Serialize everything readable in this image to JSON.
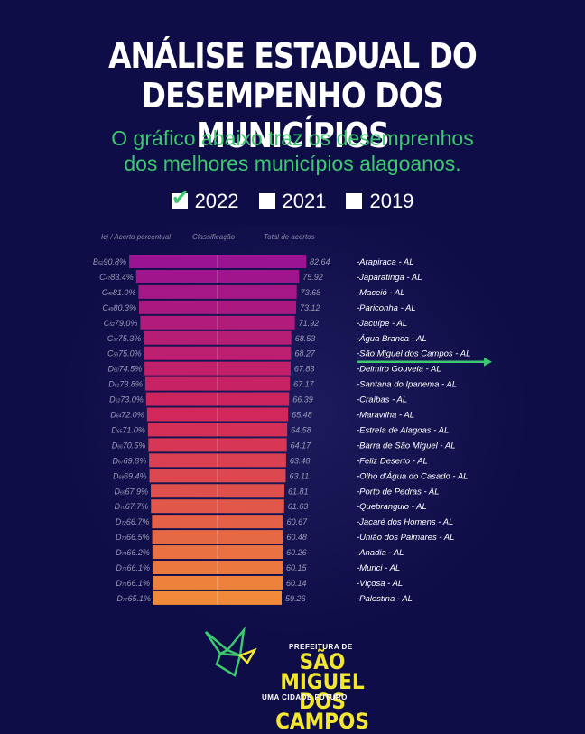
{
  "header": {
    "title_line1": "ANÁLISE ESTADUAL DO",
    "title_line2": "DESEMPENHO DOS MUNICÍPIOS",
    "subtitle_line1": "O gráfico abaixo traz os desemprenhos",
    "subtitle_line2": "dos melhores municípios alagoanos."
  },
  "legend": [
    {
      "label": "2022",
      "checked": true
    },
    {
      "label": "2021",
      "checked": false
    },
    {
      "label": "2019",
      "checked": false
    }
  ],
  "columns": {
    "icj": "Icj / Acerto percentual",
    "class": "Classificação",
    "total": "Total de acertos"
  },
  "chart_data": {
    "type": "bar",
    "title": "ANÁLISE ESTADUAL DO DESEMPENHO DOS MUNICÍPIOS",
    "orientation": "horizontal-centered",
    "highlight": "São Miguel dos Campos - AL",
    "rows": [
      {
        "grade": "B",
        "sub": "62",
        "pct": "90.8%",
        "total": 82.64,
        "name": "Arapiraca - AL"
      },
      {
        "grade": "C",
        "sub": "47",
        "pct": "83.4%",
        "total": 75.92,
        "name": "Japaratinga - AL"
      },
      {
        "grade": "C",
        "sub": "48",
        "pct": "81.0%",
        "total": 73.68,
        "name": "Maceió - AL"
      },
      {
        "grade": "C",
        "sub": "49",
        "pct": "80.3%",
        "total": 73.12,
        "name": "Pariconha - AL"
      },
      {
        "grade": "C",
        "sub": "52",
        "pct": "79.0%",
        "total": 71.92,
        "name": "Jacuípe - AL"
      },
      {
        "grade": "C",
        "sub": "57",
        "pct": "75.3%",
        "total": 68.53,
        "name": "Água Branca - AL"
      },
      {
        "grade": "C",
        "sub": "59",
        "pct": "75.0%",
        "total": 68.27,
        "name": "São Miguel dos Campos - AL"
      },
      {
        "grade": "D",
        "sub": "60",
        "pct": "74.5%",
        "total": 67.83,
        "name": "Delmiro Gouveia - AL"
      },
      {
        "grade": "D",
        "sub": "61",
        "pct": "73.8%",
        "total": 67.17,
        "name": "Santana do Ipanema - AL"
      },
      {
        "grade": "D",
        "sub": "62",
        "pct": "73.0%",
        "total": 66.39,
        "name": "Craíbas - AL"
      },
      {
        "grade": "D",
        "sub": "64",
        "pct": "72.0%",
        "total": 65.48,
        "name": "Maravilha - AL"
      },
      {
        "grade": "D",
        "sub": "65",
        "pct": "71.0%",
        "total": 64.58,
        "name": "Estrela de Alagoas - AL"
      },
      {
        "grade": "D",
        "sub": "66",
        "pct": "70.5%",
        "total": 64.17,
        "name": "Barra de São Miguel - AL"
      },
      {
        "grade": "D",
        "sub": "67",
        "pct": "69.8%",
        "total": 63.48,
        "name": "Feliz Deserto - AL"
      },
      {
        "grade": "D",
        "sub": "68",
        "pct": "69.4%",
        "total": 63.11,
        "name": "Olho d'Água do Casado - AL"
      },
      {
        "grade": "D",
        "sub": "69",
        "pct": "67.9%",
        "total": 61.81,
        "name": "Porto de Pedras - AL"
      },
      {
        "grade": "D",
        "sub": "70",
        "pct": "67.7%",
        "total": 61.63,
        "name": "Quebrangulo - AL"
      },
      {
        "grade": "D",
        "sub": "72",
        "pct": "66.7%",
        "total": 60.67,
        "name": "Jacaré dos Homens - AL"
      },
      {
        "grade": "D",
        "sub": "73",
        "pct": "66.5%",
        "total": 60.48,
        "name": "União dos Palmares - AL"
      },
      {
        "grade": "D",
        "sub": "74",
        "pct": "66.2%",
        "total": 60.26,
        "name": "Anadia - AL"
      },
      {
        "grade": "D",
        "sub": "75",
        "pct": "66.1%",
        "total": 60.15,
        "name": "Murici - AL"
      },
      {
        "grade": "D",
        "sub": "76",
        "pct": "66.1%",
        "total": 60.14,
        "name": "Viçosa - AL"
      },
      {
        "grade": "D",
        "sub": "77",
        "pct": "65.1%",
        "total": 59.26,
        "name": "Palestina - AL"
      }
    ]
  },
  "logo": {
    "top_text": "PREFEITURA DE",
    "name_line1": "SÃO MIGUEL",
    "name_line2": "DOS CAMPOS",
    "tagline": "UMA CIDADE FUTURO"
  },
  "colors": {
    "background": "#0f0d47",
    "accent_green": "#3cc86e",
    "bar_top": "#9a1390",
    "bar_mid": "#d2265a",
    "bar_bottom": "#f08a3a",
    "logo_yellow": "#f2e631"
  }
}
